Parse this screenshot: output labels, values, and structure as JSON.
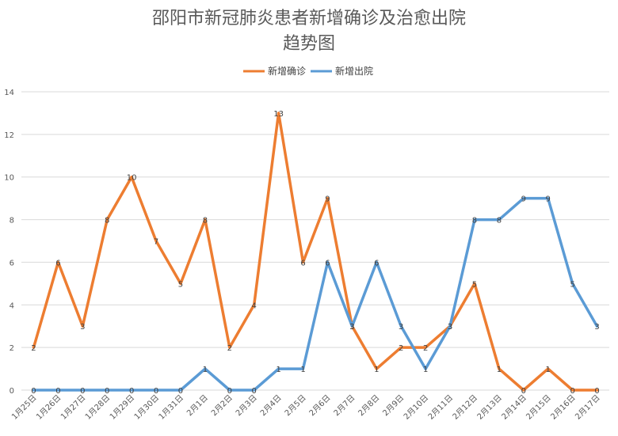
{
  "chart_data": {
    "type": "line",
    "title": "邵阳市新冠肺炎患者新增确诊及治愈出院",
    "subtitle": "趋势图",
    "categories": [
      "1月25日",
      "1月26日",
      "1月27日",
      "1月28日",
      "1月29日",
      "1月30日",
      "1月31日",
      "2月1日",
      "2月2日",
      "2月3日",
      "2月4日",
      "2月5日",
      "2月6日",
      "2月7日",
      "2月8日",
      "2月9日",
      "2月10日",
      "2月11日",
      "2月12日",
      "2月13日",
      "2月14日",
      "2月15日",
      "2月16日",
      "2月17日"
    ],
    "series": [
      {
        "name": "新增确诊",
        "color": "#ED7D31",
        "values": [
          2,
          6,
          3,
          8,
          10,
          7,
          5,
          8,
          2,
          4,
          13,
          6,
          9,
          3,
          1,
          2,
          2,
          3,
          5,
          1,
          0,
          1,
          0,
          0
        ]
      },
      {
        "name": "新增出院",
        "color": "#5B9BD5",
        "values": [
          0,
          0,
          0,
          0,
          0,
          0,
          0,
          1,
          0,
          0,
          1,
          1,
          6,
          3,
          6,
          3,
          1,
          3,
          8,
          8,
          9,
          9,
          5,
          3
        ]
      }
    ],
    "ylim": [
      0,
      14
    ],
    "yticks": [
      0,
      2,
      4,
      6,
      8,
      10,
      12,
      14
    ],
    "grid": true,
    "legend": "top-center",
    "data_labels": true
  }
}
